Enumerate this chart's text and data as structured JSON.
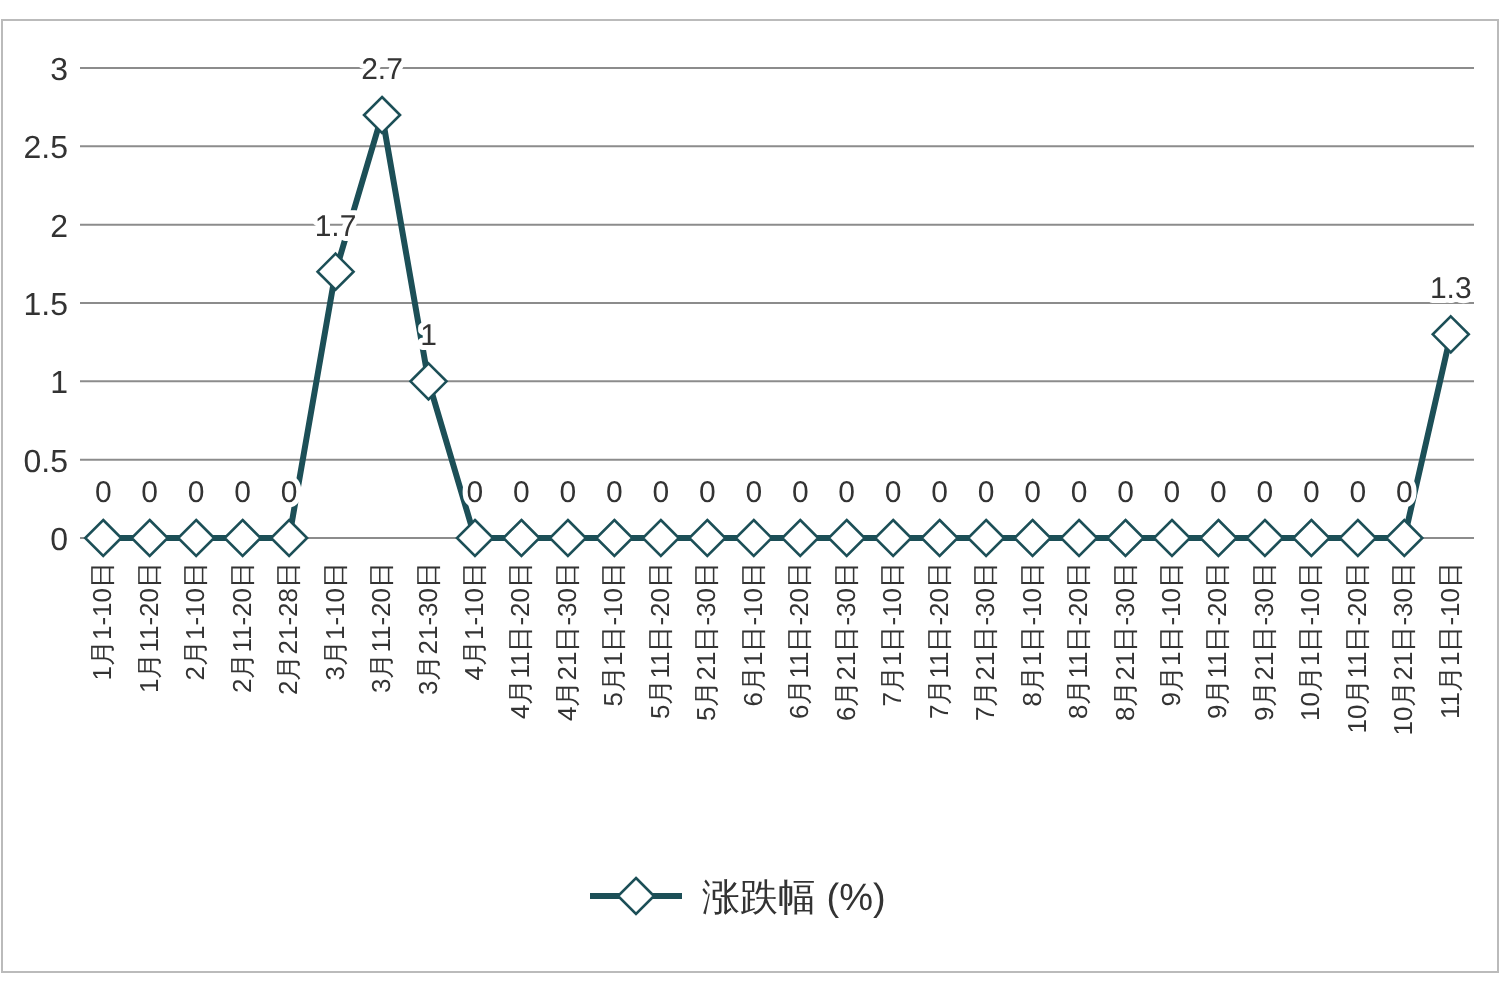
{
  "chart_data": {
    "type": "line",
    "categories": [
      "1月1-10日",
      "1月11-20日",
      "2月1-10日",
      "2月11-20日",
      "2月21-28日",
      "3月1-10日",
      "3月11-20日",
      "3月21-30日",
      "4月1-10日",
      "4月11日-20日",
      "4月21日-30日",
      "5月1日-10日",
      "5月11日-20日",
      "5月21日-30日",
      "6月1日-10日",
      "6月11日-20日",
      "6月21日-30日",
      "7月1日-10日",
      "7月11日-20日",
      "7月21日-30日",
      "8月1日-10日",
      "8月11日-20日",
      "8月21日-30日",
      "9月1日-10日",
      "9月11日-20日",
      "9月21日-30日",
      "10月1日-10日",
      "10月11日-20日",
      "10月21日-30日",
      "11月1日-10日"
    ],
    "series": [
      {
        "name": "涨跌幅 (%)",
        "color": "#1c4f57",
        "values": [
          0,
          0,
          0,
          0,
          0,
          1.7,
          2.7,
          1,
          0,
          0,
          0,
          0,
          0,
          0,
          0,
          0,
          0,
          0,
          0,
          0,
          0,
          0,
          0,
          0,
          0,
          0,
          0,
          0,
          0,
          1.3
        ]
      }
    ],
    "ylim": [
      0,
      3
    ],
    "yticks": [
      0,
      0.5,
      1,
      1.5,
      2,
      2.5,
      3
    ],
    "grid": "y",
    "legend": "bottom",
    "marker": "diamond",
    "line_style": "solid",
    "data_labels": true
  }
}
